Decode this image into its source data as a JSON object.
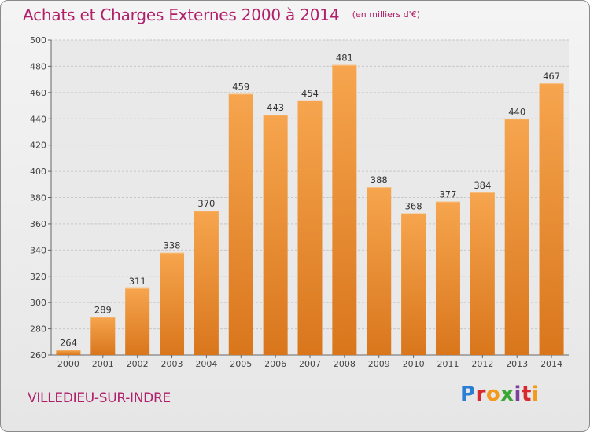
{
  "header": {
    "title": "Achats et Charges Externes 2000 à 2014",
    "unit": "(en milliers d'€)"
  },
  "footer": {
    "commune": "VILLEDIEU-SUR-INDRE",
    "logo_text": "Proxiti",
    "logo_letters": [
      "P",
      "r",
      "o",
      "x",
      "i",
      "t",
      "i"
    ],
    "logo_colors": [
      "#2a7fd4",
      "#d9272e",
      "#f29a1c",
      "#3aa635",
      "#7d3f98",
      "#d9272e",
      "#f29a1c"
    ]
  },
  "colors": {
    "bar_top": "#f6a54e",
    "bar_bottom": "#d9761c",
    "title": "#b0206a",
    "grid": "#c8c8c8"
  },
  "chart_data": {
    "type": "bar",
    "title": "Achats et Charges Externes 2000 à 2014",
    "xlabel": "",
    "ylabel": "",
    "categories": [
      "2000",
      "2001",
      "2002",
      "2003",
      "2004",
      "2005",
      "2006",
      "2007",
      "2008",
      "2009",
      "2010",
      "2011",
      "2012",
      "2013",
      "2014"
    ],
    "values": [
      264,
      289,
      311,
      338,
      370,
      459,
      443,
      454,
      481,
      388,
      368,
      377,
      384,
      440,
      467
    ],
    "ylim": [
      260,
      500
    ],
    "yticks": [
      260,
      280,
      300,
      320,
      340,
      360,
      380,
      400,
      420,
      440,
      460,
      480,
      500
    ],
    "grid": true,
    "data_labels": true
  }
}
